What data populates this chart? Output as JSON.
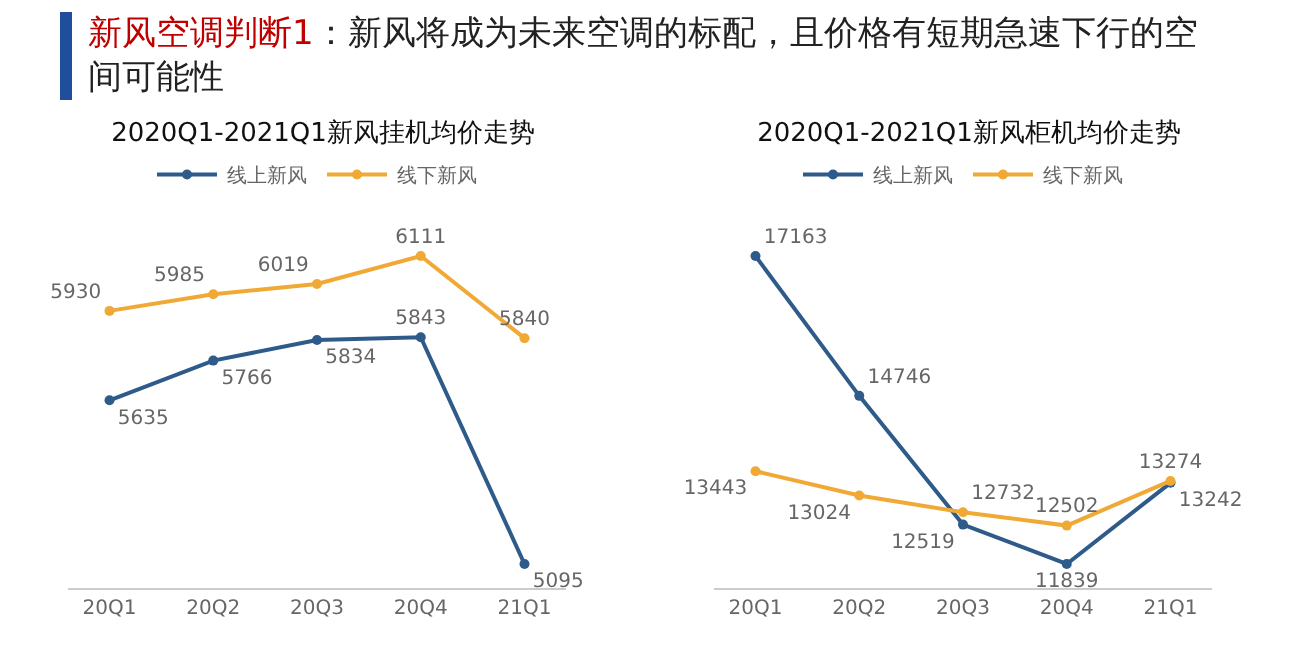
{
  "chart_data": [
    {
      "type": "line",
      "title": "2020Q1-2021Q1新风挂机均价走势",
      "annotations": [
        "新风空调判断1",
        "：新风将成为未来空调的标配，且价格有短期急速下行的空间可能性"
      ],
      "categories": [
        "20Q1",
        "20Q2",
        "20Q3",
        "20Q4",
        "21Q1"
      ],
      "series": [
        {
          "name": "线上新风",
          "color": "#2e5b8a",
          "values": [
            5635,
            5766,
            5834,
            5843,
            5095
          ]
        },
        {
          "name": "线下新风",
          "color": "#f0a935",
          "values": [
            5930,
            5985,
            6019,
            6111,
            5840
          ]
        }
      ],
      "data_labels": true,
      "legend": "top",
      "marker": "circle",
      "grid": false
    },
    {
      "type": "line",
      "title": "2020Q1-2021Q1新风柜机均价走势",
      "categories": [
        "20Q1",
        "20Q2",
        "20Q3",
        "20Q4",
        "21Q1"
      ],
      "series": [
        {
          "name": "线上新风",
          "color": "#2e5b8a",
          "values": [
            17163,
            14746,
            12519,
            11839,
            13242
          ]
        },
        {
          "name": "线下新风",
          "color": "#f0a935",
          "values": [
            13443,
            13024,
            12732,
            12502,
            13274
          ]
        }
      ],
      "data_labels": true,
      "legend": "top",
      "marker": "circle",
      "grid": false
    }
  ]
}
